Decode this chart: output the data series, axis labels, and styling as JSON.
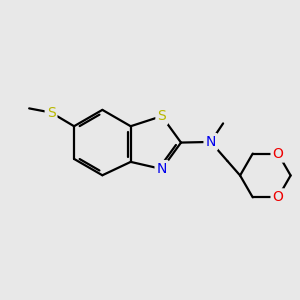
{
  "bg_color": "#e8e8e8",
  "bond_color": "#000000",
  "bond_width": 1.6,
  "atom_colors": {
    "S": "#b8b800",
    "N": "#0000ee",
    "O": "#ee0000",
    "C": "#000000"
  },
  "font_size_atom": 10,
  "fig_bg": "#e8e8e8"
}
